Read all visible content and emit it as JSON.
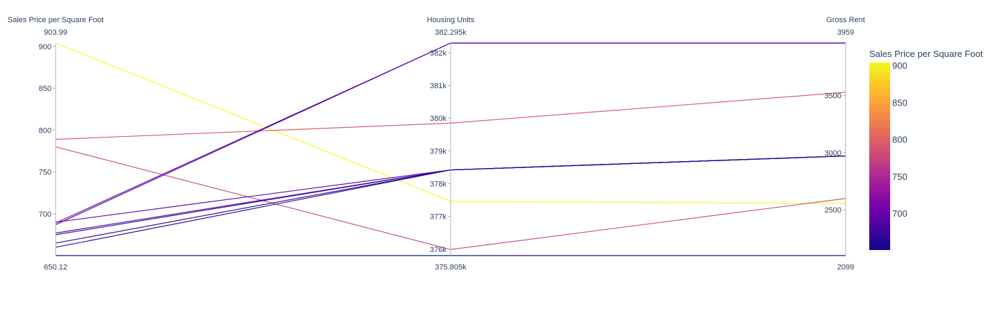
{
  "chart_data": {
    "type": "parallel_coordinates",
    "dimensions": [
      {
        "label": "Sales Price per Square Foot",
        "range": [
          650.12,
          903.99
        ],
        "range_labels": {
          "min": "650.12",
          "max": "903.99"
        },
        "ticks": [
          {
            "value": 700,
            "label": "700"
          },
          {
            "value": 750,
            "label": "750"
          },
          {
            "value": 800,
            "label": "800"
          },
          {
            "value": 850,
            "label": "850"
          },
          {
            "value": 900,
            "label": "900"
          }
        ]
      },
      {
        "label": "Housing Units",
        "range": [
          375805,
          382295
        ],
        "range_labels": {
          "min": "375.805k",
          "max": "382.295k"
        },
        "ticks": [
          {
            "value": 376000,
            "label": "376k"
          },
          {
            "value": 377000,
            "label": "377k"
          },
          {
            "value": 378000,
            "label": "378k"
          },
          {
            "value": 379000,
            "label": "379k"
          },
          {
            "value": 380000,
            "label": "380k"
          },
          {
            "value": 381000,
            "label": "381k"
          },
          {
            "value": 382000,
            "label": "382k"
          }
        ]
      },
      {
        "label": "Gross Rent",
        "range": [
          2099,
          3959
        ],
        "range_labels": {
          "min": "2099",
          "max": "3959"
        },
        "ticks": [
          {
            "value": 2500,
            "label": "2500"
          },
          {
            "value": 3000,
            "label": "3000"
          },
          {
            "value": 3500,
            "label": "3500"
          }
        ]
      }
    ],
    "lines": [
      {
        "values": [
          903.99,
          377465,
          2555
        ]
      },
      {
        "values": [
          789,
          379850,
          3528
        ]
      },
      {
        "values": [
          780,
          375990,
          2599
        ]
      },
      {
        "values": [
          689,
          382295,
          3959
        ]
      },
      {
        "values": [
          687,
          382295,
          3959
        ]
      },
      {
        "values": [
          690,
          378420,
          2971
        ]
      },
      {
        "values": [
          677,
          378420,
          2971
        ]
      },
      {
        "values": [
          675,
          378420,
          2971
        ]
      },
      {
        "values": [
          665,
          378420,
          2971
        ]
      },
      {
        "values": [
          660,
          378420,
          2971
        ]
      },
      {
        "values": [
          650.12,
          375805,
          2099
        ]
      }
    ],
    "colorbar": {
      "title": "Sales Price per Square Foot",
      "range": [
        650.12,
        903.99
      ],
      "colorscale": [
        "#0d0887",
        "#46039f",
        "#7201a8",
        "#9c179e",
        "#bd3786",
        "#d8576b",
        "#ed7953",
        "#fb9f3a",
        "#fdca26",
        "#f0f921"
      ],
      "ticks": [
        {
          "value": 700,
          "label": "700"
        },
        {
          "value": 750,
          "label": "750"
        },
        {
          "value": 800,
          "label": "800"
        },
        {
          "value": 850,
          "label": "850"
        },
        {
          "value": 900,
          "label": "900"
        }
      ]
    }
  }
}
